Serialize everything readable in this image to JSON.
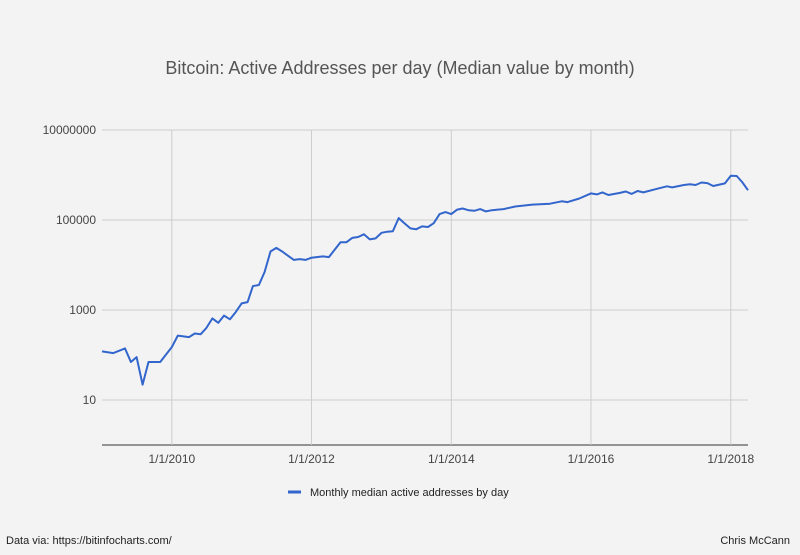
{
  "chart_data": {
    "type": "line",
    "title": "Bitcoin: Active Addresses per day (Median value by month)",
    "xlabel": "",
    "ylabel": "",
    "y_scale": "log",
    "ylim": [
      1,
      10000000
    ],
    "xlim": [
      "2009-01-01",
      "2018-04-01"
    ],
    "y_ticks": [
      {
        "value": 10,
        "label": "10"
      },
      {
        "value": 1000,
        "label": "1000"
      },
      {
        "value": 100000,
        "label": "100000"
      },
      {
        "value": 10000000,
        "label": "10000000"
      }
    ],
    "x_ticks": [
      {
        "value": "2010-01-01",
        "label": "1/1/2010"
      },
      {
        "value": "2012-01-01",
        "label": "1/1/2012"
      },
      {
        "value": "2014-01-01",
        "label": "1/1/2014"
      },
      {
        "value": "2016-01-01",
        "label": "1/1/2016"
      },
      {
        "value": "2018-01-01",
        "label": "1/1/2018"
      }
    ],
    "grid": true,
    "legend_position": "bottom",
    "series": [
      {
        "name": "Monthly median active addresses by day",
        "color": "#3366cc",
        "points": [
          [
            "2009-01-01",
            120
          ],
          [
            "2009-03-01",
            110
          ],
          [
            "2009-05-01",
            140
          ],
          [
            "2009-06-01",
            70
          ],
          [
            "2009-07-01",
            90
          ],
          [
            "2009-08-01",
            22
          ],
          [
            "2009-09-01",
            70
          ],
          [
            "2009-11-01",
            70
          ],
          [
            "2010-01-01",
            150
          ],
          [
            "2010-02-01",
            270
          ],
          [
            "2010-04-01",
            250
          ],
          [
            "2010-05-01",
            300
          ],
          [
            "2010-06-01",
            290
          ],
          [
            "2010-07-01",
            400
          ],
          [
            "2010-08-01",
            650
          ],
          [
            "2010-09-01",
            520
          ],
          [
            "2010-10-01",
            750
          ],
          [
            "2010-11-01",
            620
          ],
          [
            "2010-12-01",
            900
          ],
          [
            "2011-01-01",
            1400
          ],
          [
            "2011-02-01",
            1500
          ],
          [
            "2011-03-01",
            3400
          ],
          [
            "2011-04-01",
            3600
          ],
          [
            "2011-05-01",
            7000
          ],
          [
            "2011-06-01",
            20000
          ],
          [
            "2011-07-01",
            24000
          ],
          [
            "2011-08-01",
            20000
          ],
          [
            "2011-09-01",
            16000
          ],
          [
            "2011-10-01",
            13000
          ],
          [
            "2011-11-01",
            13500
          ],
          [
            "2011-12-01",
            13000
          ],
          [
            "2012-01-01",
            14500
          ],
          [
            "2012-03-01",
            15500
          ],
          [
            "2012-04-01",
            15000
          ],
          [
            "2012-06-01",
            32000
          ],
          [
            "2012-07-01",
            32000
          ],
          [
            "2012-08-01",
            40000
          ],
          [
            "2012-09-01",
            42000
          ],
          [
            "2012-10-01",
            48000
          ],
          [
            "2012-11-01",
            37000
          ],
          [
            "2012-12-01",
            39000
          ],
          [
            "2013-01-01",
            52000
          ],
          [
            "2013-02-01",
            55000
          ],
          [
            "2013-03-01",
            56000
          ],
          [
            "2013-04-01",
            110000
          ],
          [
            "2013-05-01",
            85000
          ],
          [
            "2013-06-01",
            65000
          ],
          [
            "2013-07-01",
            62000
          ],
          [
            "2013-08-01",
            72000
          ],
          [
            "2013-09-01",
            70000
          ],
          [
            "2013-10-01",
            85000
          ],
          [
            "2013-11-01",
            135000
          ],
          [
            "2013-12-01",
            150000
          ],
          [
            "2014-01-01",
            135000
          ],
          [
            "2014-02-01",
            170000
          ],
          [
            "2014-03-01",
            180000
          ],
          [
            "2014-04-01",
            165000
          ],
          [
            "2014-05-01",
            160000
          ],
          [
            "2014-06-01",
            175000
          ],
          [
            "2014-07-01",
            155000
          ],
          [
            "2014-08-01",
            165000
          ],
          [
            "2014-09-01",
            170000
          ],
          [
            "2014-10-01",
            175000
          ],
          [
            "2014-12-01",
            200000
          ],
          [
            "2015-03-01",
            220000
          ],
          [
            "2015-06-01",
            230000
          ],
          [
            "2015-08-01",
            260000
          ],
          [
            "2015-09-01",
            250000
          ],
          [
            "2015-11-01",
            300000
          ],
          [
            "2016-01-01",
            390000
          ],
          [
            "2016-02-01",
            370000
          ],
          [
            "2016-03-01",
            410000
          ],
          [
            "2016-04-01",
            360000
          ],
          [
            "2016-06-01",
            400000
          ],
          [
            "2016-07-01",
            430000
          ],
          [
            "2016-08-01",
            380000
          ],
          [
            "2016-09-01",
            440000
          ],
          [
            "2016-10-01",
            410000
          ],
          [
            "2016-12-01",
            480000
          ],
          [
            "2017-02-01",
            560000
          ],
          [
            "2017-03-01",
            530000
          ],
          [
            "2017-05-01",
            600000
          ],
          [
            "2017-06-01",
            620000
          ],
          [
            "2017-07-01",
            600000
          ],
          [
            "2017-08-01",
            680000
          ],
          [
            "2017-09-01",
            660000
          ],
          [
            "2017-10-01",
            570000
          ],
          [
            "2017-12-01",
            650000
          ],
          [
            "2018-01-01",
            960000
          ],
          [
            "2018-02-01",
            950000
          ],
          [
            "2018-03-01",
            700000
          ],
          [
            "2018-04-01",
            460000
          ]
        ]
      }
    ]
  },
  "footer": {
    "source": "Data via: https://bitinfocharts.com/",
    "author": "Chris McCann"
  }
}
